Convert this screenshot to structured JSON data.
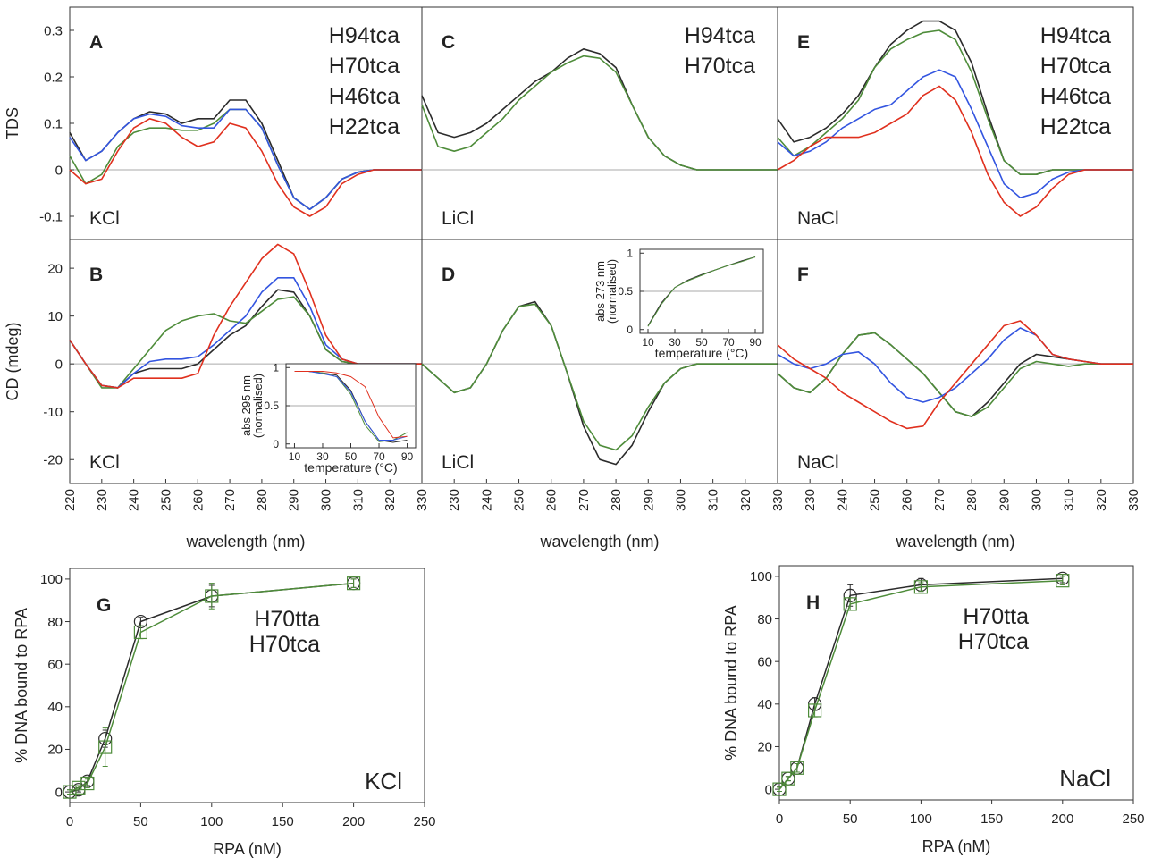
{
  "chart_data": [
    {
      "type": "line",
      "panel_label": "A",
      "annotation": "KCl",
      "ylabel": "TDS",
      "legend": "top-right",
      "hline": 0,
      "x": [
        220,
        225,
        230,
        235,
        240,
        245,
        250,
        255,
        260,
        265,
        270,
        275,
        280,
        285,
        290,
        295,
        300,
        305,
        310,
        315,
        320,
        325,
        330
      ],
      "xlim": [
        220,
        330
      ],
      "ylim": [
        -0.15,
        0.35
      ],
      "yticks": [
        -0.1,
        0,
        0.1,
        0.2,
        0.3
      ],
      "series": [
        {
          "name": "H94tca",
          "color": "#2b2b2b",
          "values": [
            0.08,
            0.02,
            0.04,
            0.08,
            0.11,
            0.125,
            0.12,
            0.1,
            0.11,
            0.11,
            0.15,
            0.15,
            0.1,
            0.02,
            -0.06,
            -0.085,
            -0.06,
            -0.02,
            -0.005,
            0,
            0,
            0,
            0
          ]
        },
        {
          "name": "H70tca",
          "color": "#4e8c3a",
          "values": [
            0.03,
            -0.03,
            -0.01,
            0.05,
            0.08,
            0.09,
            0.09,
            0.085,
            0.085,
            0.1,
            0.13,
            0.13,
            0.09,
            0.01,
            -0.06,
            -0.085,
            -0.06,
            -0.02,
            -0.005,
            0,
            0,
            0,
            0
          ]
        },
        {
          "name": "H46tca",
          "color": "#3355e0",
          "values": [
            0.07,
            0.02,
            0.04,
            0.08,
            0.11,
            0.12,
            0.115,
            0.095,
            0.09,
            0.09,
            0.13,
            0.13,
            0.09,
            0.01,
            -0.06,
            -0.085,
            -0.06,
            -0.02,
            -0.005,
            0,
            0,
            0,
            0
          ]
        },
        {
          "name": "H22tca",
          "color": "#e0301e",
          "values": [
            0,
            -0.03,
            -0.02,
            0.04,
            0.09,
            0.11,
            0.1,
            0.07,
            0.05,
            0.06,
            0.1,
            0.09,
            0.04,
            -0.03,
            -0.08,
            -0.1,
            -0.08,
            -0.03,
            -0.01,
            0,
            0,
            0,
            0
          ]
        }
      ]
    },
    {
      "type": "line",
      "panel_label": "B",
      "annotation": "KCl",
      "ylabel": "CD (mdeg)",
      "xlabel": "wavelength (nm)",
      "hline": 0,
      "x": [
        220,
        225,
        230,
        235,
        240,
        245,
        250,
        255,
        260,
        265,
        270,
        275,
        280,
        285,
        290,
        295,
        300,
        305,
        310,
        315,
        320,
        325,
        330
      ],
      "xlim": [
        220,
        330
      ],
      "xticks": [
        220,
        230,
        240,
        250,
        260,
        270,
        280,
        290,
        300,
        310,
        320,
        330
      ],
      "ylim": [
        -25,
        26
      ],
      "yticks": [
        -20,
        -10,
        0,
        10,
        20
      ],
      "series": [
        {
          "name": "H94tca",
          "color": "#2b2b2b",
          "values": [
            5,
            0,
            -4.5,
            -5,
            -2,
            -1,
            -1,
            -1,
            0,
            3,
            6,
            8,
            12,
            15.5,
            15,
            10,
            3,
            0.5,
            0,
            0,
            0,
            0,
            0
          ]
        },
        {
          "name": "H70tca",
          "color": "#4e8c3a",
          "values": [
            5,
            0,
            -5,
            -5,
            -1,
            3,
            7,
            9,
            10,
            10.5,
            9,
            8.5,
            11,
            13.5,
            14,
            10,
            3,
            0.5,
            0,
            0,
            0,
            0,
            0
          ]
        },
        {
          "name": "H46tca",
          "color": "#3355e0",
          "values": [
            5,
            0,
            -4.5,
            -5,
            -2,
            0.5,
            1,
            1,
            1.5,
            4,
            7,
            10,
            15,
            18,
            18,
            12,
            4,
            1,
            0,
            0,
            0,
            0,
            0
          ]
        },
        {
          "name": "H22tca",
          "color": "#e0301e",
          "values": [
            5,
            0,
            -4.5,
            -5,
            -3,
            -3,
            -3,
            -3,
            -2,
            6,
            12,
            17,
            22,
            25,
            23,
            15,
            6,
            1,
            0,
            0,
            0,
            0,
            0
          ]
        }
      ]
    },
    {
      "type": "line",
      "panel_label": "C",
      "annotation": "LiCl",
      "legend": "top-right",
      "hline": 0,
      "x": [
        220,
        225,
        230,
        235,
        240,
        245,
        250,
        255,
        260,
        265,
        270,
        275,
        280,
        285,
        290,
        295,
        300,
        305,
        310,
        315,
        320,
        325,
        330
      ],
      "xlim": [
        220,
        330
      ],
      "ylim": [
        -0.15,
        0.35
      ],
      "series": [
        {
          "name": "H94tca",
          "color": "#2b2b2b",
          "values": [
            0.16,
            0.08,
            0.07,
            0.08,
            0.1,
            0.13,
            0.16,
            0.19,
            0.21,
            0.24,
            0.26,
            0.25,
            0.22,
            0.14,
            0.07,
            0.03,
            0.01,
            0,
            0,
            0,
            0,
            0,
            0
          ]
        },
        {
          "name": "H70tca",
          "color": "#4e8c3a",
          "values": [
            0.14,
            0.05,
            0.04,
            0.05,
            0.08,
            0.11,
            0.15,
            0.18,
            0.21,
            0.23,
            0.245,
            0.24,
            0.21,
            0.14,
            0.07,
            0.03,
            0.01,
            0,
            0,
            0,
            0,
            0,
            0
          ]
        }
      ]
    },
    {
      "type": "line",
      "panel_label": "D",
      "annotation": "LiCl",
      "xlabel": "wavelength (nm)",
      "hline": 0,
      "x": [
        220,
        225,
        230,
        235,
        240,
        245,
        250,
        255,
        260,
        265,
        270,
        275,
        280,
        285,
        290,
        295,
        300,
        305,
        310,
        315,
        320,
        325,
        330
      ],
      "xlim": [
        220,
        330
      ],
      "xticks": [
        230,
        240,
        250,
        260,
        270,
        280,
        290,
        300,
        310,
        320,
        330
      ],
      "ylim": [
        -25,
        26
      ],
      "series": [
        {
          "name": "H94tca",
          "color": "#2b2b2b",
          "values": [
            0,
            -3,
            -6,
            -5,
            0,
            7,
            12,
            13,
            8,
            -2,
            -13,
            -20,
            -21,
            -17,
            -10,
            -4,
            -1,
            0,
            0,
            0,
            0,
            0,
            0
          ]
        },
        {
          "name": "H70tca",
          "color": "#4e8c3a",
          "values": [
            0,
            -3,
            -6,
            -5,
            0,
            7,
            12,
            12.5,
            8,
            -2,
            -12,
            -17,
            -18,
            -15,
            -9,
            -4,
            -1,
            0,
            0,
            0,
            0,
            0,
            0
          ]
        }
      ]
    },
    {
      "type": "line",
      "panel_label": "E",
      "annotation": "NaCl",
      "legend": "top-right",
      "hline": 0,
      "x": [
        220,
        225,
        230,
        235,
        240,
        245,
        250,
        255,
        260,
        265,
        270,
        275,
        280,
        285,
        290,
        295,
        300,
        305,
        310,
        315,
        320,
        325,
        330
      ],
      "xlim": [
        220,
        330
      ],
      "ylim": [
        -0.15,
        0.35
      ],
      "series": [
        {
          "name": "H94tca",
          "color": "#2b2b2b",
          "values": [
            0.11,
            0.06,
            0.07,
            0.09,
            0.12,
            0.16,
            0.22,
            0.27,
            0.3,
            0.32,
            0.32,
            0.3,
            0.23,
            0.12,
            0.02,
            -0.01,
            -0.01,
            0,
            0,
            0,
            0,
            0,
            0
          ]
        },
        {
          "name": "H70tca",
          "color": "#4e8c3a",
          "values": [
            0.07,
            0.03,
            0.05,
            0.08,
            0.11,
            0.15,
            0.22,
            0.26,
            0.28,
            0.295,
            0.3,
            0.28,
            0.21,
            0.11,
            0.02,
            -0.01,
            -0.01,
            0,
            0,
            0,
            0,
            0,
            0
          ]
        },
        {
          "name": "H46tca",
          "color": "#3355e0",
          "values": [
            0.06,
            0.03,
            0.04,
            0.06,
            0.09,
            0.11,
            0.13,
            0.14,
            0.17,
            0.2,
            0.215,
            0.2,
            0.13,
            0.05,
            -0.03,
            -0.06,
            -0.05,
            -0.02,
            -0.005,
            0,
            0,
            0,
            0
          ]
        },
        {
          "name": "H22tca",
          "color": "#e0301e",
          "values": [
            0,
            0.02,
            0.05,
            0.07,
            0.07,
            0.07,
            0.08,
            0.1,
            0.12,
            0.16,
            0.18,
            0.15,
            0.08,
            -0.01,
            -0.07,
            -0.1,
            -0.08,
            -0.04,
            -0.01,
            0,
            0,
            0,
            0
          ]
        }
      ]
    },
    {
      "type": "line",
      "panel_label": "F",
      "annotation": "NaCl",
      "xlabel": "wavelength (nm)",
      "hline": 0,
      "x": [
        220,
        225,
        230,
        235,
        240,
        245,
        250,
        255,
        260,
        265,
        270,
        275,
        280,
        285,
        290,
        295,
        300,
        305,
        310,
        315,
        320,
        325,
        330
      ],
      "xlim": [
        220,
        330
      ],
      "xticks": [
        230,
        240,
        250,
        260,
        270,
        280,
        290,
        300,
        310,
        320,
        330
      ],
      "ylim": [
        -25,
        26
      ],
      "series": [
        {
          "name": "H94tca",
          "color": "#2b2b2b",
          "values": [
            -2,
            -5,
            -6,
            -3,
            2,
            6,
            6.5,
            4,
            1,
            -2,
            -6,
            -10,
            -11,
            -8,
            -4,
            0,
            2,
            1.5,
            1,
            0.5,
            0,
            0,
            0
          ]
        },
        {
          "name": "H70tca",
          "color": "#4e8c3a",
          "values": [
            -2,
            -5,
            -6,
            -3,
            2,
            6,
            6.5,
            4,
            1,
            -2,
            -6,
            -10,
            -11,
            -9,
            -5,
            -1,
            0.5,
            0,
            -0.5,
            0,
            0,
            0,
            0
          ]
        },
        {
          "name": "H46tca",
          "color": "#3355e0",
          "values": [
            2,
            0,
            -1,
            0,
            2,
            2.5,
            0,
            -4,
            -7,
            -8,
            -7,
            -5,
            -2,
            1,
            5,
            7.5,
            6,
            2,
            1,
            0.5,
            0,
            0,
            0
          ]
        },
        {
          "name": "H22tca",
          "color": "#e0301e",
          "values": [
            4,
            1,
            -1,
            -3,
            -6,
            -8,
            -10,
            -12,
            -13.5,
            -13,
            -8,
            -4,
            0,
            4,
            8,
            9,
            6,
            2,
            1,
            0.5,
            0,
            0,
            0
          ]
        }
      ]
    },
    {
      "type": "line",
      "inset": true,
      "ylabel_lines": [
        "abs 295 nm",
        "(normalised)"
      ],
      "xlabel": "temperature (°C)",
      "hline": 0.5,
      "x": [
        10,
        20,
        30,
        40,
        50,
        60,
        70,
        80,
        90
      ],
      "xlim": [
        4,
        96
      ],
      "xticks": [
        10,
        30,
        50,
        70,
        90
      ],
      "ylim": [
        -0.05,
        1.05
      ],
      "yticks": [
        0,
        0.5,
        1
      ],
      "series": [
        {
          "name": "H94tca",
          "color": "#2b2b2b",
          "values": [
            0.95,
            0.95,
            0.93,
            0.9,
            0.7,
            0.3,
            0.05,
            0.02,
            0.05
          ]
        },
        {
          "name": "H70tca",
          "color": "#4e8c3a",
          "values": [
            0.95,
            0.95,
            0.93,
            0.88,
            0.65,
            0.25,
            0.03,
            0.05,
            0.15
          ]
        },
        {
          "name": "H46tca",
          "color": "#3355e0",
          "values": [
            0.95,
            0.95,
            0.92,
            0.88,
            0.68,
            0.3,
            0.05,
            0.05,
            0.1
          ]
        },
        {
          "name": "H22tca",
          "color": "#e0301e",
          "values": [
            0.95,
            0.95,
            0.95,
            0.93,
            0.88,
            0.75,
            0.35,
            0.08,
            0.1
          ]
        }
      ]
    },
    {
      "type": "line",
      "inset": true,
      "ylabel_lines": [
        "abs 273 nm",
        "(normalised)"
      ],
      "xlabel": "temperature (°C)",
      "hline": 0.5,
      "x": [
        10,
        20,
        30,
        40,
        50,
        60,
        70,
        80,
        90
      ],
      "xlim": [
        4,
        96
      ],
      "xticks": [
        10,
        30,
        50,
        70,
        90
      ],
      "ylim": [
        -0.05,
        1.05
      ],
      "yticks": [
        0,
        0.5,
        1
      ],
      "series": [
        {
          "name": "H94tca",
          "color": "#2b2b2b",
          "values": [
            0.05,
            0.35,
            0.55,
            0.65,
            0.72,
            0.78,
            0.84,
            0.9,
            0.95
          ]
        },
        {
          "name": "H70tca",
          "color": "#4e8c3a",
          "values": [
            0.04,
            0.33,
            0.55,
            0.64,
            0.71,
            0.78,
            0.84,
            0.89,
            0.95
          ]
        }
      ]
    },
    {
      "type": "errorbar",
      "panel_label": "G",
      "annotation": "KCl",
      "legend": "top-right",
      "ylabel": "% DNA bound to RPA",
      "xlabel": "RPA (nM)",
      "x": [
        0,
        6.25,
        12.5,
        25,
        50,
        100,
        200
      ],
      "xlim": [
        0,
        250
      ],
      "xticks": [
        0,
        50,
        100,
        150,
        200,
        250
      ],
      "ylim": [
        -5,
        105
      ],
      "yticks": [
        0,
        20,
        40,
        60,
        80,
        100
      ],
      "series": [
        {
          "name": "H70tta",
          "color": "#2b2b2b",
          "marker": "circle",
          "values": [
            0,
            1,
            5,
            25,
            80,
            92,
            98
          ],
          "errors": [
            1,
            1,
            2,
            4,
            2,
            5,
            2
          ]
        },
        {
          "name": "H70tca",
          "color": "#4e8c3a",
          "marker": "square",
          "values": [
            0,
            2,
            4,
            21,
            75,
            92,
            98
          ],
          "errors": [
            1,
            1,
            2,
            9,
            3,
            6,
            2
          ]
        }
      ]
    },
    {
      "type": "errorbar",
      "panel_label": "H",
      "annotation": "NaCl",
      "legend": "top-right",
      "ylabel": "% DNA bound to RPA",
      "xlabel": "RPA (nM)",
      "x": [
        0,
        6.25,
        12.5,
        25,
        50,
        100,
        200
      ],
      "xlim": [
        0,
        250
      ],
      "xticks": [
        0,
        50,
        100,
        150,
        200,
        250
      ],
      "ylim": [
        -5,
        105
      ],
      "yticks": [
        0,
        20,
        40,
        60,
        80,
        100
      ],
      "series": [
        {
          "name": "H70tta",
          "color": "#2b2b2b",
          "marker": "circle",
          "values": [
            0,
            5,
            10,
            40,
            91,
            96,
            99
          ],
          "errors": [
            1,
            1,
            2,
            3,
            5,
            3,
            2
          ]
        },
        {
          "name": "H70tca",
          "color": "#4e8c3a",
          "marker": "square",
          "values": [
            0,
            5,
            10,
            37,
            87,
            95,
            98
          ],
          "errors": [
            1,
            1,
            2,
            3,
            3,
            2,
            2
          ]
        }
      ]
    }
  ]
}
